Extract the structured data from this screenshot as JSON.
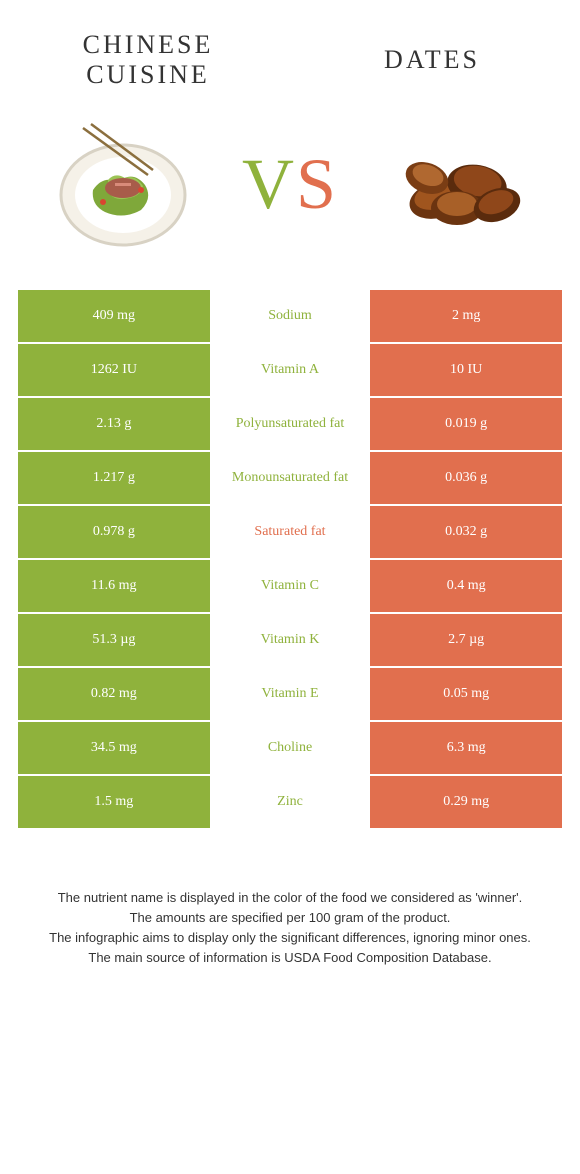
{
  "header": {
    "left_title": "Chinese cuisine",
    "right_title": "Dates",
    "vs_letters": {
      "v": "V",
      "s": "S"
    }
  },
  "colors": {
    "left": "#8fb23c",
    "right": "#e16f4e",
    "background": "#ffffff",
    "text": "#333333"
  },
  "comparison_table": {
    "type": "table",
    "columns": [
      "left_value",
      "nutrient",
      "right_value"
    ],
    "rows": [
      {
        "left": "409 mg",
        "nutrient": "Sodium",
        "right": "2 mg",
        "winner": "left"
      },
      {
        "left": "1262 IU",
        "nutrient": "Vitamin A",
        "right": "10 IU",
        "winner": "left"
      },
      {
        "left": "2.13 g",
        "nutrient": "Polyunsaturated fat",
        "right": "0.019 g",
        "winner": "left"
      },
      {
        "left": "1.217 g",
        "nutrient": "Monounsaturated fat",
        "right": "0.036 g",
        "winner": "left"
      },
      {
        "left": "0.978 g",
        "nutrient": "Saturated fat",
        "right": "0.032 g",
        "winner": "right"
      },
      {
        "left": "11.6 mg",
        "nutrient": "Vitamin C",
        "right": "0.4 mg",
        "winner": "left"
      },
      {
        "left": "51.3 µg",
        "nutrient": "Vitamin K",
        "right": "2.7 µg",
        "winner": "left"
      },
      {
        "left": "0.82 mg",
        "nutrient": "Vitamin E",
        "right": "0.05 mg",
        "winner": "left"
      },
      {
        "left": "34.5 mg",
        "nutrient": "Choline",
        "right": "6.3 mg",
        "winner": "left"
      },
      {
        "left": "1.5 mg",
        "nutrient": "Zinc",
        "right": "0.29 mg",
        "winner": "left"
      }
    ]
  },
  "footnotes": {
    "line1": "The nutrient name is displayed in the color of the food we considered as 'winner'.",
    "line2": "The amounts are specified per 100 gram of the product.",
    "line3": "The infographic aims to display only the significant differences, ignoring minor ones.",
    "line4": "The main source of information is USDA Food Composition Database."
  }
}
